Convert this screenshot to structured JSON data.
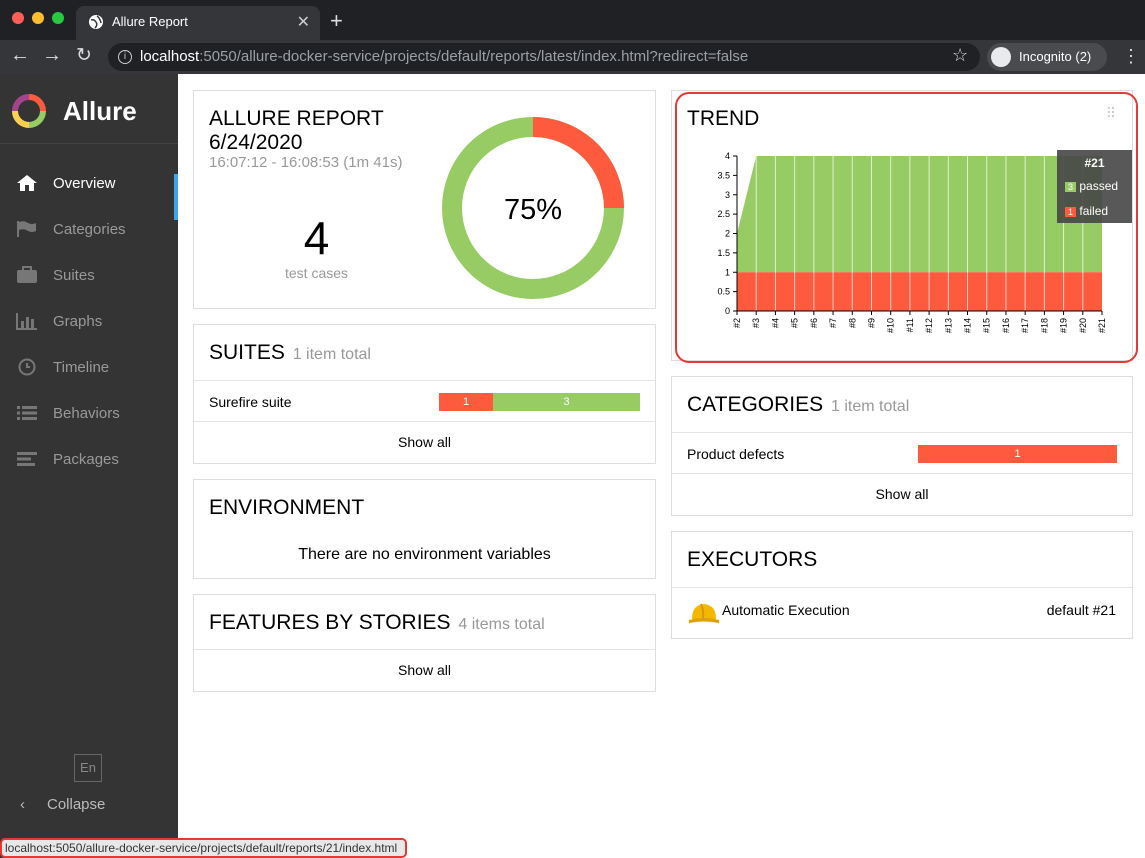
{
  "browser": {
    "tab_title": "Allure Report",
    "url_host": "localhost",
    "url_rest": ":5050/allure-docker-service/projects/default/reports/latest/index.html?redirect=false",
    "incognito_label": "Incognito (2)",
    "status_url": "localhost:5050/allure-docker-service/projects/default/reports/21/index.html"
  },
  "sidebar": {
    "brand": "Allure",
    "items": [
      {
        "label": "Overview"
      },
      {
        "label": "Categories"
      },
      {
        "label": "Suites"
      },
      {
        "label": "Graphs"
      },
      {
        "label": "Timeline"
      },
      {
        "label": "Behaviors"
      },
      {
        "label": "Packages"
      }
    ],
    "lang": "En",
    "collapse": "Collapse"
  },
  "summary": {
    "title": "ALLURE REPORT",
    "date": "6/24/2020",
    "time": "16:07:12 - 16:08:53 (1m 41s)",
    "test_count": "4",
    "test_label": "test cases",
    "percent": "75%",
    "passed_fraction": 0.75
  },
  "suites": {
    "title": "SUITES",
    "count": "1 item total",
    "row_name": "Surefire suite",
    "failed": "1",
    "passed": "3",
    "show_all": "Show all"
  },
  "environment": {
    "title": "ENVIRONMENT",
    "empty": "There are no environment variables"
  },
  "features": {
    "title": "FEATURES BY STORIES",
    "count": "4 items total",
    "show_all": "Show all"
  },
  "trend": {
    "title": "TREND",
    "tooltip_title": "#21",
    "tooltip_passed_count": "3",
    "tooltip_passed": "passed",
    "tooltip_failed_count": "1",
    "tooltip_failed": "failed"
  },
  "chart_data": {
    "type": "area",
    "title": "TREND",
    "categories": [
      "#2",
      "#3",
      "#4",
      "#5",
      "#6",
      "#7",
      "#8",
      "#9",
      "#10",
      "#11",
      "#12",
      "#13",
      "#14",
      "#15",
      "#16",
      "#17",
      "#18",
      "#19",
      "#20",
      "#21"
    ],
    "series": [
      {
        "name": "failed",
        "values": [
          1,
          1,
          1,
          1,
          1,
          1,
          1,
          1,
          1,
          1,
          1,
          1,
          1,
          1,
          1,
          1,
          1,
          1,
          1,
          1
        ]
      },
      {
        "name": "passed",
        "values": [
          1,
          3,
          3,
          3,
          3,
          3,
          3,
          3,
          3,
          3,
          3,
          3,
          3,
          3,
          3,
          3,
          3,
          3,
          3,
          3
        ]
      }
    ],
    "yticks": [
      "0",
      "0.5",
      "1",
      "1.5",
      "2",
      "2.5",
      "3",
      "3.5",
      "4"
    ],
    "ylim": [
      0,
      4
    ],
    "stacked": true,
    "colors": {
      "passed": "#97cc64",
      "failed": "#fd5a3e"
    }
  },
  "categories": {
    "title": "CATEGORIES",
    "count": "1 item total",
    "row_name": "Product defects",
    "value": "1",
    "show_all": "Show all"
  },
  "executors": {
    "title": "EXECUTORS",
    "name": "Automatic Execution",
    "build": "default #21"
  }
}
